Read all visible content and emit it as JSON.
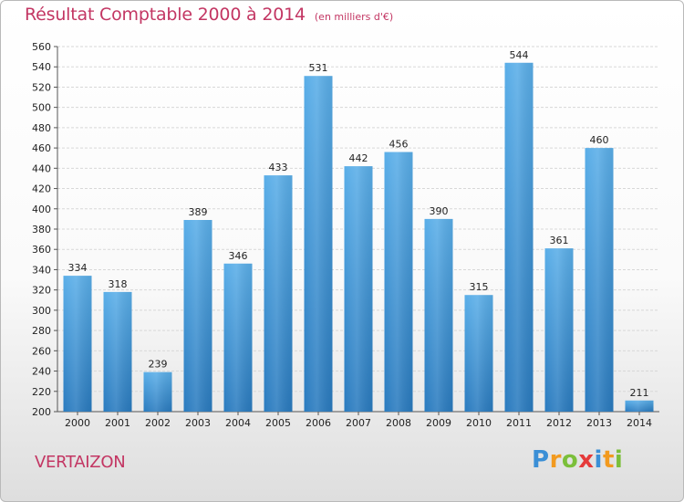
{
  "header": {
    "title": "Résultat Comptable 2000 à 2014",
    "unit": "(en milliers d'€)"
  },
  "city": "VERTAIZON",
  "logo": {
    "text": "Proxiti",
    "letters": [
      {
        "ch": "P",
        "color": "#3b8fd6"
      },
      {
        "ch": "r",
        "color": "#f29a1f"
      },
      {
        "ch": "o",
        "color": "#7bbf3a"
      },
      {
        "ch": "x",
        "color": "#e53a3a"
      },
      {
        "ch": "i",
        "color": "#3b8fd6"
      },
      {
        "ch": "t",
        "color": "#f29a1f"
      },
      {
        "ch": "i",
        "color": "#7bbf3a"
      }
    ]
  },
  "colors": {
    "title": "#c33663",
    "bar_light": "#5aaee8",
    "bar_dark": "#2a7bbf",
    "grid": "#d8d8d8"
  },
  "chart_data": {
    "type": "bar",
    "title": "Résultat Comptable 2000 à 2014",
    "subtitle": "(en milliers d'€)",
    "xlabel": "",
    "ylabel": "",
    "categories": [
      "2000",
      "2001",
      "2002",
      "2003",
      "2004",
      "2005",
      "2006",
      "2007",
      "2008",
      "2009",
      "2010",
      "2011",
      "2012",
      "2013",
      "2014"
    ],
    "values": [
      334,
      318,
      239,
      389,
      346,
      433,
      531,
      442,
      456,
      390,
      315,
      544,
      361,
      460,
      211
    ],
    "ylim": [
      200,
      560
    ],
    "ytick_step": 20,
    "grid": true,
    "legend": "none"
  }
}
